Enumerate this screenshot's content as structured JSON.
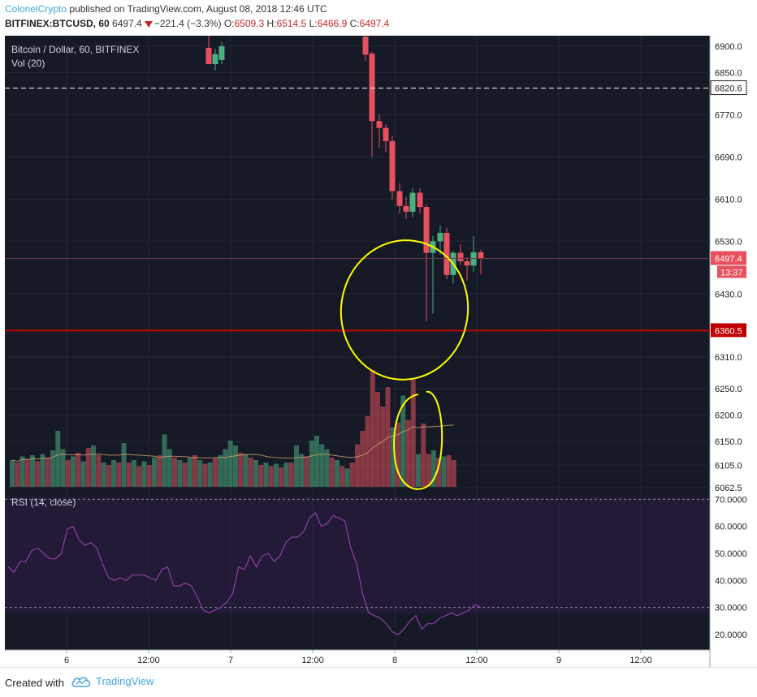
{
  "header": {
    "author": "ColonelCrypto",
    "published": "published on TradingView.com, August 08, 2018 12:46 UTC",
    "symbol": "BITFINEX:BTCUSD, 60",
    "last": "6497.4",
    "change": "−221.4 (−3.3%)",
    "o_label": "O:",
    "o_value": "6509.3",
    "h_label": "H:",
    "h_value": "6514.5",
    "l_label": "L:",
    "l_value": "6466.9",
    "c_label": "C:",
    "c_value": "6497.4"
  },
  "legend": {
    "title": "Bitcoin / Dollar, 60, BITFINEX",
    "volume": "Vol (20)",
    "rsi": "RSI (14, close)"
  },
  "footer": {
    "created_with": "Created with",
    "brand": "TradingView"
  },
  "colors": {
    "up": "#4caf82",
    "down": "#e8505f",
    "price_pane": "#151a26",
    "rsi_pane": "#221a36",
    "rsi_line": "#8e3fa8",
    "support_line": "#c00000",
    "annotation": "#ffff00",
    "last_price_tag": "#e8505f",
    "support_tag": "#c00000"
  },
  "chart_data": {
    "type": "candlestick",
    "timeframe": "60",
    "x_ticks": [
      "6",
      "12:00",
      "7",
      "12:00",
      "8",
      "12:00",
      "9",
      "12:00"
    ],
    "price_axis_ticks": [
      "6900.0",
      "6850.0",
      "6770.0",
      "6690.0",
      "6610.0",
      "6530.0",
      "6430.0",
      "6310.0",
      "6250.0",
      "6200.0",
      "6150.0",
      "6105.0",
      "6062.5"
    ],
    "price_range": [
      6062.5,
      6920
    ],
    "dashed_level": 6820.6,
    "support_level": 6360.5,
    "last_price": 6497.4,
    "countdown": "13:37",
    "candles": [
      {
        "t": "6 20:00",
        "o": 6897,
        "h": 6920,
        "l": 6868,
        "c": 6866
      },
      {
        "t": "6 21:00",
        "o": 6866,
        "h": 6895,
        "l": 6854,
        "c": 6885
      },
      {
        "t": "6 22:00",
        "o": 6874,
        "h": 6908,
        "l": 6866,
        "c": 6900
      },
      {
        "t": "7 18:00",
        "o": 6918,
        "h": 6924,
        "l": 6872,
        "c": 6884
      },
      {
        "t": "7 19:00",
        "o": 6886,
        "h": 6890,
        "l": 6690,
        "c": 6758
      },
      {
        "t": "7 20:00",
        "o": 6758,
        "h": 6770,
        "l": 6708,
        "c": 6745
      },
      {
        "t": "7 21:00",
        "o": 6745,
        "h": 6752,
        "l": 6700,
        "c": 6720
      },
      {
        "t": "7 22:00",
        "o": 6720,
        "h": 6730,
        "l": 6610,
        "c": 6625
      },
      {
        "t": "7 23:00",
        "o": 6625,
        "h": 6640,
        "l": 6582,
        "c": 6597
      },
      {
        "t": "8 00:00",
        "o": 6597,
        "h": 6615,
        "l": 6572,
        "c": 6586
      },
      {
        "t": "8 01:00",
        "o": 6586,
        "h": 6630,
        "l": 6576,
        "c": 6622
      },
      {
        "t": "8 02:00",
        "o": 6622,
        "h": 6630,
        "l": 6582,
        "c": 6595
      },
      {
        "t": "8 03:00",
        "o": 6595,
        "h": 6600,
        "l": 6378,
        "c": 6508
      },
      {
        "t": "8 04:00",
        "o": 6508,
        "h": 6540,
        "l": 6393,
        "c": 6530
      },
      {
        "t": "8 05:00",
        "o": 6530,
        "h": 6560,
        "l": 6505,
        "c": 6546
      },
      {
        "t": "8 06:00",
        "o": 6546,
        "h": 6556,
        "l": 6458,
        "c": 6466
      },
      {
        "t": "8 07:00",
        "o": 6466,
        "h": 6512,
        "l": 6450,
        "c": 6508
      },
      {
        "t": "8 08:00",
        "o": 6508,
        "h": 6524,
        "l": 6485,
        "c": 6492
      },
      {
        "t": "8 09:00",
        "o": 6492,
        "h": 6500,
        "l": 6455,
        "c": 6484
      },
      {
        "t": "8 10:00",
        "o": 6484,
        "h": 6540,
        "l": 6472,
        "c": 6509
      },
      {
        "t": "8 11:00",
        "o": 6509,
        "h": 6514,
        "l": 6467,
        "c": 6497
      }
    ],
    "volume_bars": [
      {
        "v": 0.22,
        "up": true
      },
      {
        "v": 0.2,
        "up": false
      },
      {
        "v": 0.25,
        "up": true
      },
      {
        "v": 0.23,
        "up": false
      },
      {
        "v": 0.26,
        "up": true
      },
      {
        "v": 0.21,
        "up": false
      },
      {
        "v": 0.27,
        "up": true
      },
      {
        "v": 0.24,
        "up": false
      },
      {
        "v": 0.3,
        "up": true
      },
      {
        "v": 0.46,
        "up": true
      },
      {
        "v": 0.31,
        "up": true
      },
      {
        "v": 0.22,
        "up": false
      },
      {
        "v": 0.25,
        "up": true
      },
      {
        "v": 0.28,
        "up": false
      },
      {
        "v": 0.21,
        "up": true
      },
      {
        "v": 0.32,
        "up": false
      },
      {
        "v": 0.34,
        "up": true
      },
      {
        "v": 0.26,
        "up": false
      },
      {
        "v": 0.2,
        "up": true
      },
      {
        "v": 0.18,
        "up": false
      },
      {
        "v": 0.22,
        "up": true
      },
      {
        "v": 0.2,
        "up": false
      },
      {
        "v": 0.36,
        "up": true
      },
      {
        "v": 0.2,
        "up": false
      },
      {
        "v": 0.22,
        "up": true
      },
      {
        "v": 0.17,
        "up": false
      },
      {
        "v": 0.21,
        "up": true
      },
      {
        "v": 0.18,
        "up": false
      },
      {
        "v": 0.24,
        "up": true
      },
      {
        "v": 0.26,
        "up": false
      },
      {
        "v": 0.43,
        "up": true
      },
      {
        "v": 0.31,
        "up": true
      },
      {
        "v": 0.24,
        "up": false
      },
      {
        "v": 0.22,
        "up": true
      },
      {
        "v": 0.2,
        "up": false
      },
      {
        "v": 0.24,
        "up": true
      },
      {
        "v": 0.26,
        "up": false
      },
      {
        "v": 0.22,
        "up": true
      },
      {
        "v": 0.19,
        "up": false
      },
      {
        "v": 0.2,
        "up": true
      },
      {
        "v": 0.24,
        "up": false
      },
      {
        "v": 0.26,
        "up": true
      },
      {
        "v": 0.31,
        "up": true
      },
      {
        "v": 0.38,
        "up": true
      },
      {
        "v": 0.34,
        "up": true
      },
      {
        "v": 0.28,
        "up": false
      },
      {
        "v": 0.27,
        "up": true
      },
      {
        "v": 0.24,
        "up": false
      },
      {
        "v": 0.22,
        "up": true
      },
      {
        "v": 0.18,
        "up": false
      },
      {
        "v": 0.2,
        "up": true
      },
      {
        "v": 0.17,
        "up": false
      },
      {
        "v": 0.19,
        "up": true
      },
      {
        "v": 0.16,
        "up": false
      },
      {
        "v": 0.2,
        "up": true
      },
      {
        "v": 0.2,
        "up": false
      },
      {
        "v": 0.34,
        "up": true
      },
      {
        "v": 0.27,
        "up": true
      },
      {
        "v": 0.25,
        "up": false
      },
      {
        "v": 0.38,
        "up": true
      },
      {
        "v": 0.42,
        "up": true
      },
      {
        "v": 0.35,
        "up": true
      },
      {
        "v": 0.31,
        "up": true
      },
      {
        "v": 0.24,
        "up": false
      },
      {
        "v": 0.22,
        "up": true
      },
      {
        "v": 0.17,
        "up": false
      },
      {
        "v": 0.15,
        "up": true
      },
      {
        "v": 0.2,
        "up": false
      },
      {
        "v": 0.35,
        "up": false
      },
      {
        "v": 0.46,
        "up": false
      },
      {
        "v": 0.58,
        "up": false
      },
      {
        "v": 0.96,
        "up": false
      },
      {
        "v": 0.78,
        "up": false
      },
      {
        "v": 0.66,
        "up": false
      },
      {
        "v": 0.82,
        "up": false
      },
      {
        "v": 0.49,
        "up": true
      },
      {
        "v": 0.53,
        "up": false
      },
      {
        "v": 0.75,
        "up": true
      },
      {
        "v": 0.55,
        "up": false
      },
      {
        "v": 0.88,
        "up": false
      },
      {
        "v": 0.27,
        "up": true
      },
      {
        "v": 0.52,
        "up": false
      },
      {
        "v": 0.27,
        "up": false
      },
      {
        "v": 0.3,
        "up": true
      },
      {
        "v": 0.24,
        "up": false
      },
      {
        "v": 0.25,
        "up": true
      },
      {
        "v": 0.26,
        "up": false
      },
      {
        "v": 0.22,
        "up": false
      }
    ],
    "rsi_axis_ticks": [
      "70.0000",
      "60.0000",
      "50.0000",
      "40.0000",
      "30.0000",
      "20.0000"
    ],
    "rsi_range": [
      17,
      71
    ],
    "rsi_levels": [
      70,
      30
    ],
    "rsi_values": [
      45,
      43,
      47,
      47,
      51,
      52,
      50,
      48,
      48,
      50,
      59,
      60,
      55,
      53,
      54,
      52,
      46,
      41,
      40,
      41,
      40,
      42,
      42,
      42,
      41,
      40,
      44,
      45,
      38,
      38,
      39,
      38,
      34,
      29,
      28,
      29,
      30,
      32,
      35,
      45,
      44,
      49,
      45,
      49,
      50,
      47,
      49,
      54,
      56,
      56,
      58,
      63,
      65,
      60,
      61,
      64,
      63,
      62,
      52,
      46,
      35,
      28,
      27,
      26,
      24,
      21,
      20,
      22,
      25,
      27,
      22,
      24,
      24,
      26,
      27,
      28,
      27,
      28,
      29,
      31,
      30
    ]
  }
}
